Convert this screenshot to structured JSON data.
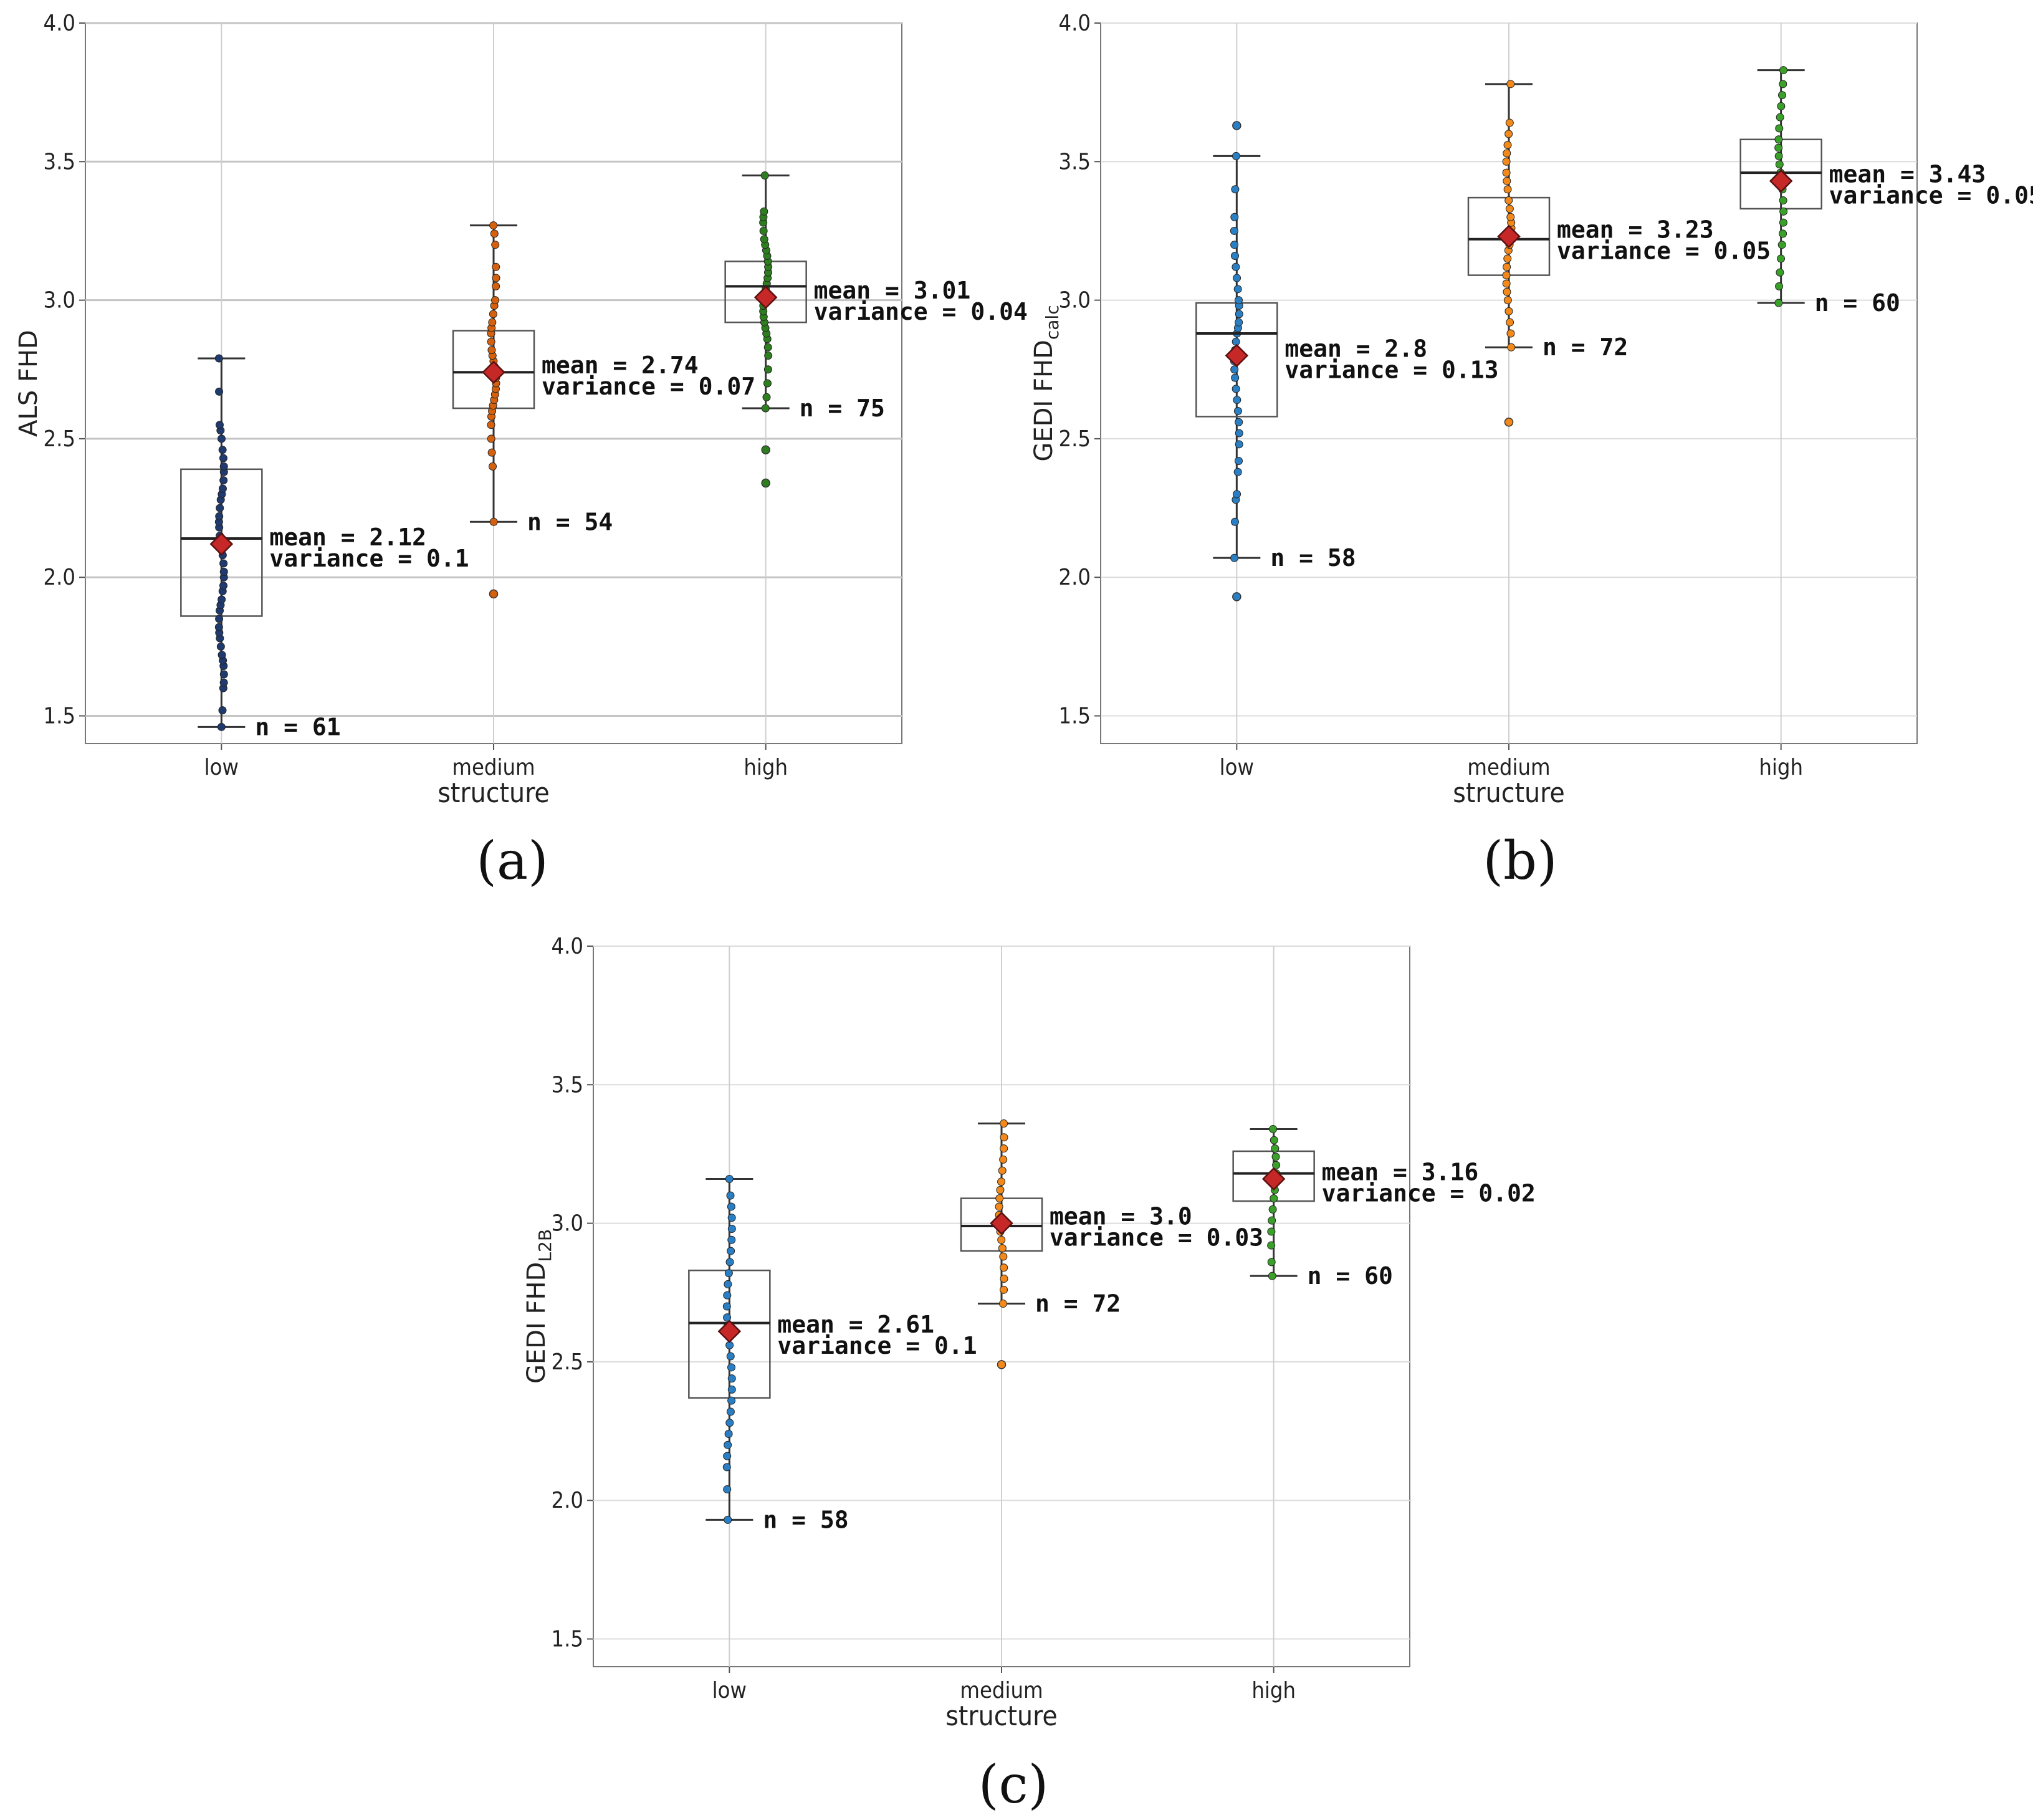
{
  "chart_data": [
    {
      "type": "box",
      "panel_label": "(a)",
      "xlabel": "structure",
      "ylabel": "ALS FHD",
      "ylabel_sub": "",
      "ylim": [
        1.4,
        4.0
      ],
      "yticks": [
        "1.5",
        "2.0",
        "2.5",
        "3.0",
        "3.5",
        "4.0"
      ],
      "categories": [
        "low",
        "medium",
        "high"
      ],
      "colors": [
        "#1f3a6e",
        "#d4610f",
        "#2e7d1f"
      ],
      "groups": [
        {
          "category": "low",
          "whisker_low": 1.46,
          "q1": 1.86,
          "median": 2.14,
          "q3": 2.39,
          "whisker_high": 2.79,
          "mean": 2.12,
          "mean_label": "mean = 2.12",
          "variance_label": "variance = 0.1",
          "n_label": "n = 61",
          "points": [
            1.46,
            1.52,
            1.6,
            1.62,
            1.65,
            1.68,
            1.7,
            1.72,
            1.75,
            1.78,
            1.8,
            1.82,
            1.85,
            1.88,
            1.9,
            1.92,
            1.95,
            1.97,
            2.0,
            2.02,
            2.05,
            2.08,
            2.1,
            2.12,
            2.15,
            2.18,
            2.2,
            2.22,
            2.25,
            2.28,
            2.3,
            2.32,
            2.35,
            2.38,
            2.4,
            2.43,
            2.46,
            2.5,
            2.53,
            2.55,
            2.67,
            2.79
          ],
          "outliers": []
        },
        {
          "category": "medium",
          "whisker_low": 2.2,
          "q1": 2.61,
          "median": 2.74,
          "q3": 2.89,
          "whisker_high": 3.27,
          "mean": 2.74,
          "mean_label": "mean = 2.74",
          "variance_label": "variance = 0.07",
          "n_label": "n = 54",
          "points": [
            2.2,
            2.4,
            2.45,
            2.5,
            2.55,
            2.58,
            2.6,
            2.62,
            2.64,
            2.66,
            2.68,
            2.7,
            2.72,
            2.74,
            2.76,
            2.78,
            2.8,
            2.82,
            2.85,
            2.88,
            2.9,
            2.92,
            2.95,
            2.98,
            3.0,
            3.05,
            3.08,
            3.12,
            3.2,
            3.24,
            3.27
          ],
          "outliers": [
            1.94
          ]
        },
        {
          "category": "high",
          "whisker_low": 2.61,
          "q1": 2.92,
          "median": 3.05,
          "q3": 3.14,
          "whisker_high": 3.45,
          "mean": 3.01,
          "mean_label": "mean = 3.01",
          "variance_label": "variance = 0.04",
          "n_label": "n = 75",
          "points": [
            2.61,
            2.65,
            2.7,
            2.75,
            2.8,
            2.83,
            2.86,
            2.88,
            2.9,
            2.92,
            2.94,
            2.96,
            2.98,
            3.0,
            3.02,
            3.04,
            3.06,
            3.08,
            3.1,
            3.12,
            3.14,
            3.16,
            3.18,
            3.2,
            3.22,
            3.25,
            3.28,
            3.3,
            3.32,
            3.45
          ],
          "outliers": [
            2.46,
            2.34
          ]
        }
      ]
    },
    {
      "type": "box",
      "panel_label": "(b)",
      "xlabel": "structure",
      "ylabel": "GEDI FHD",
      "ylabel_sub": "calc",
      "ylim": [
        1.4,
        4.0
      ],
      "yticks": [
        "1.5",
        "2.0",
        "2.5",
        "3.0",
        "3.5",
        "4.0"
      ],
      "categories": [
        "low",
        "medium",
        "high"
      ],
      "colors": [
        "#2a7fc4",
        "#f2891a",
        "#3aa02a"
      ],
      "groups": [
        {
          "category": "low",
          "whisker_low": 2.07,
          "q1": 2.58,
          "median": 2.88,
          "q3": 2.99,
          "whisker_high": 3.52,
          "mean": 2.8,
          "mean_label": "mean = 2.8",
          "variance_label": "variance = 0.13",
          "n_label": "n = 58",
          "points": [
            2.07,
            2.2,
            2.28,
            2.3,
            2.38,
            2.42,
            2.48,
            2.52,
            2.56,
            2.6,
            2.64,
            2.68,
            2.72,
            2.75,
            2.78,
            2.8,
            2.82,
            2.85,
            2.88,
            2.9,
            2.92,
            2.95,
            2.98,
            3.0,
            3.04,
            3.08,
            3.12,
            3.16,
            3.2,
            3.25,
            3.3,
            3.4,
            3.52
          ],
          "outliers": [
            3.63,
            1.93
          ]
        },
        {
          "category": "medium",
          "whisker_low": 2.83,
          "q1": 3.09,
          "median": 3.22,
          "q3": 3.37,
          "whisker_high": 3.78,
          "mean": 3.23,
          "mean_label": "mean = 3.23",
          "variance_label": "variance = 0.05",
          "n_label": "n = 72",
          "points": [
            2.83,
            2.88,
            2.92,
            2.96,
            3.0,
            3.03,
            3.06,
            3.09,
            3.12,
            3.15,
            3.18,
            3.2,
            3.22,
            3.24,
            3.26,
            3.28,
            3.3,
            3.33,
            3.36,
            3.4,
            3.43,
            3.46,
            3.5,
            3.53,
            3.56,
            3.6,
            3.64,
            3.78
          ],
          "outliers": [
            2.56
          ]
        },
        {
          "category": "high",
          "whisker_low": 2.99,
          "q1": 3.33,
          "median": 3.46,
          "q3": 3.58,
          "whisker_high": 3.83,
          "mean": 3.43,
          "mean_label": "mean = 3.43",
          "variance_label": "variance = 0.05",
          "n_label": "n = 60",
          "points": [
            2.99,
            3.05,
            3.1,
            3.15,
            3.2,
            3.24,
            3.28,
            3.32,
            3.36,
            3.4,
            3.43,
            3.46,
            3.49,
            3.52,
            3.55,
            3.58,
            3.62,
            3.66,
            3.7,
            3.74,
            3.78,
            3.83
          ],
          "outliers": []
        }
      ]
    },
    {
      "type": "box",
      "panel_label": "(c)",
      "xlabel": "structure",
      "ylabel": "GEDI FHD",
      "ylabel_sub": "L2B",
      "ylim": [
        1.4,
        4.0
      ],
      "yticks": [
        "1.5",
        "2.0",
        "2.5",
        "3.0",
        "3.5",
        "4.0"
      ],
      "categories": [
        "low",
        "medium",
        "high"
      ],
      "colors": [
        "#2a7fc4",
        "#f2891a",
        "#3aa02a"
      ],
      "groups": [
        {
          "category": "low",
          "whisker_low": 1.93,
          "q1": 2.37,
          "median": 2.64,
          "q3": 2.83,
          "whisker_high": 3.16,
          "mean": 2.61,
          "mean_label": "mean = 2.61",
          "variance_label": "variance = 0.1",
          "n_label": "n = 58",
          "points": [
            1.93,
            2.04,
            2.12,
            2.16,
            2.2,
            2.24,
            2.28,
            2.32,
            2.36,
            2.4,
            2.44,
            2.48,
            2.52,
            2.56,
            2.6,
            2.63,
            2.66,
            2.7,
            2.74,
            2.78,
            2.82,
            2.86,
            2.9,
            2.94,
            2.98,
            3.02,
            3.06,
            3.1,
            3.16
          ],
          "outliers": []
        },
        {
          "category": "medium",
          "whisker_low": 2.71,
          "q1": 2.9,
          "median": 2.99,
          "q3": 3.09,
          "whisker_high": 3.36,
          "mean": 3.0,
          "mean_label": "mean = 3.0",
          "variance_label": "variance = 0.03",
          "n_label": "n = 72",
          "points": [
            2.71,
            2.76,
            2.8,
            2.84,
            2.88,
            2.91,
            2.94,
            2.97,
            3.0,
            3.03,
            3.06,
            3.09,
            3.12,
            3.15,
            3.19,
            3.23,
            3.27,
            3.31,
            3.36
          ],
          "outliers": [
            2.49
          ]
        },
        {
          "category": "high",
          "whisker_low": 2.81,
          "q1": 3.08,
          "median": 3.18,
          "q3": 3.26,
          "whisker_high": 3.34,
          "mean": 3.16,
          "mean_label": "mean = 3.16",
          "variance_label": "variance = 0.02",
          "n_label": "n = 60",
          "points": [
            2.81,
            2.86,
            2.92,
            2.97,
            3.01,
            3.05,
            3.09,
            3.12,
            3.15,
            3.18,
            3.21,
            3.24,
            3.27,
            3.3,
            3.34
          ],
          "outliers": []
        }
      ]
    }
  ]
}
